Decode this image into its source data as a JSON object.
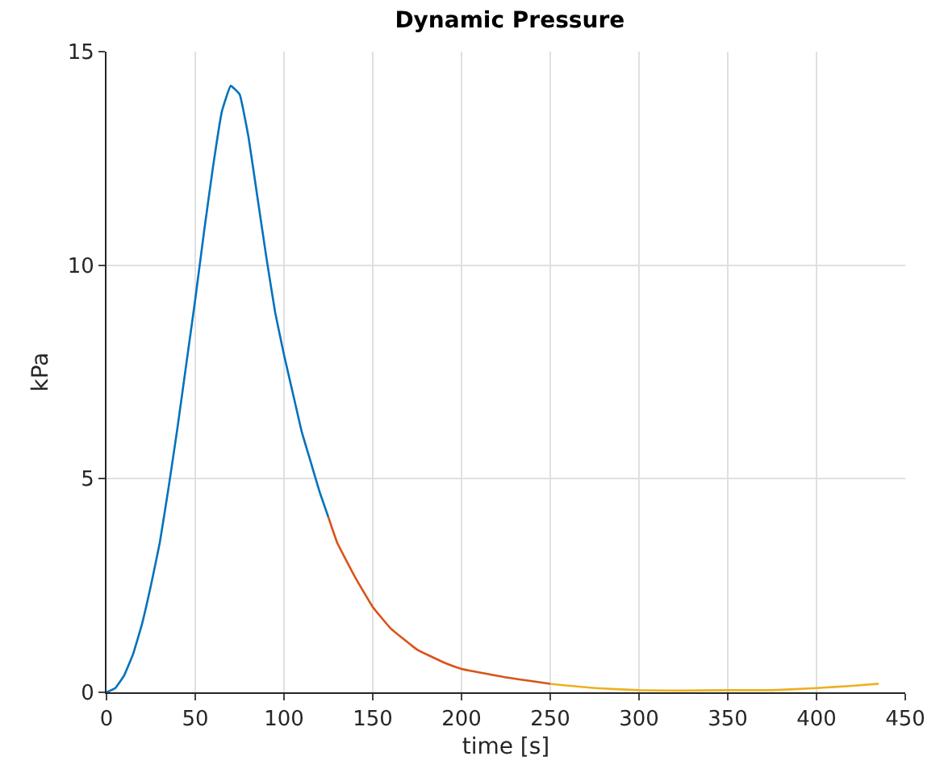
{
  "chart_data": {
    "type": "line",
    "title": "Dynamic Pressure",
    "xlabel": "time [s]",
    "ylabel": "kPa",
    "xlim": [
      0,
      450
    ],
    "xticks": [
      0,
      50,
      100,
      150,
      200,
      250,
      300,
      350,
      400,
      450
    ],
    "ylim": [
      0,
      15
    ],
    "yticks": [
      0,
      5,
      10,
      15
    ],
    "grid": true,
    "legend": false,
    "series": [
      {
        "color": "#0072bd",
        "x": [
          0,
          5,
          10,
          15,
          20,
          25,
          30,
          35,
          40,
          45,
          50,
          55,
          60,
          65,
          70,
          75,
          80,
          85,
          90,
          95,
          100,
          105,
          110,
          115,
          120,
          125
        ],
        "values": [
          0,
          0.1,
          0.4,
          0.9,
          1.6,
          2.5,
          3.5,
          4.8,
          6.2,
          7.7,
          9.2,
          10.8,
          12.3,
          13.6,
          14.2,
          14.0,
          13.0,
          11.6,
          10.2,
          8.9,
          7.9,
          7.0,
          6.1,
          5.4,
          4.7,
          4.1
        ]
      },
      {
        "color": "#d95319",
        "x": [
          125,
          130,
          140,
          150,
          160,
          175,
          190,
          200,
          225,
          250
        ],
        "values": [
          4.1,
          3.5,
          2.7,
          2.0,
          1.5,
          1.0,
          0.7,
          0.55,
          0.35,
          0.2
        ]
      },
      {
        "color": "#edb120",
        "x": [
          250,
          275,
          300,
          325,
          350,
          375,
          400,
          420,
          435
        ],
        "values": [
          0.2,
          0.1,
          0.05,
          0.04,
          0.05,
          0.05,
          0.1,
          0.15,
          0.2
        ]
      }
    ]
  }
}
